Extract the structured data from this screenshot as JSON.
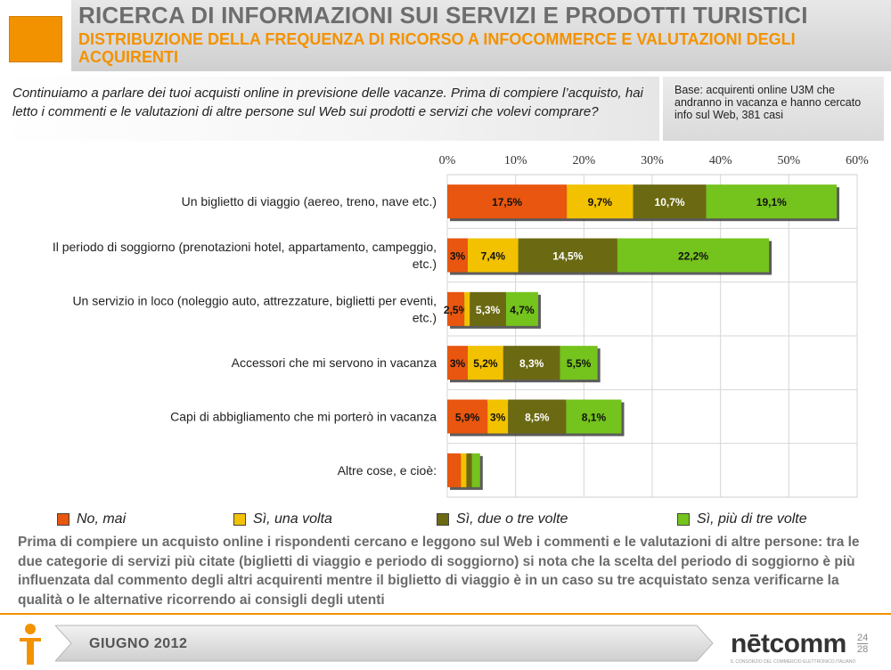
{
  "header": {
    "title": "RICERCA DI INFORMAZIONI SUI SERVIZI E PRODOTTI TURISTICI",
    "subtitle": "DISTRIBUZIONE DELLA FREQUENZA DI RICORSO A INFOCOMMERCE E VALUTAZIONI DEGLI ACQUIRENTI"
  },
  "question": "Continuiamo a parlare dei tuoi acquisti online in previsione delle vacanze. Prima di compiere l’acquisto, hai letto i commenti e le valutazioni di altre persone sul Web sui prodotti e servizi che volevi comprare?",
  "base": "Base: acquirenti online U3M che andranno in vacanza e hanno cercato info sul Web, 381 casi",
  "chart_data": {
    "type": "bar",
    "orientation": "horizontal",
    "stacked": true,
    "categories": [
      "Un biglietto di viaggio (aereo, treno, nave etc.)",
      "Il periodo di soggiorno (prenotazioni hotel, appartamento, campeggio, etc.)",
      "Un servizio in loco (noleggio auto, attrezzature, biglietti per eventi, etc.)",
      "Accessori che mi servono in vacanza",
      "Capi di abbigliamento che mi porterò in vacanza",
      "Altre cose, e cioè:"
    ],
    "category_lines": [
      [
        "Un biglietto di viaggio (aereo, treno, nave etc.)"
      ],
      [
        "Il periodo di soggiorno (prenotazioni hotel, appartamento, campeggio,",
        "etc.)"
      ],
      [
        "Un servizio in loco (noleggio auto, attrezzature, biglietti per eventi,",
        "etc.)"
      ],
      [
        "Accessori che mi servono in vacanza"
      ],
      [
        "Capi di abbigliamento che mi porterò in vacanza"
      ],
      [
        "Altre cose, e cioè:"
      ]
    ],
    "series": [
      {
        "name": "No, mai",
        "color": "#e8560f",
        "values": [
          17.5,
          3,
          2.5,
          3,
          5.9,
          2
        ]
      },
      {
        "name": "Sì, una volta",
        "color": "#f2c100",
        "values": [
          9.7,
          7.4,
          0.8,
          5.2,
          3,
          0.8
        ]
      },
      {
        "name": "Sì, due o tre volte",
        "color": "#6b6a12",
        "values": [
          10.7,
          14.5,
          5.3,
          8.3,
          8.5,
          0.8
        ]
      },
      {
        "name": "Sì, più di tre volte",
        "color": "#75c31d",
        "values": [
          19.1,
          22.2,
          4.7,
          5.5,
          8.1,
          1.2
        ]
      }
    ],
    "data_labels": [
      [
        "17,5%",
        "9,7%",
        "10,7%",
        "19,1%"
      ],
      [
        "3%",
        "7,4%",
        "14,5%",
        "22,2%"
      ],
      [
        "2,5%",
        "",
        "5,3%",
        "4,7%"
      ],
      [
        "3%",
        "5,2%",
        "8,3%",
        "5,5%"
      ],
      [
        "5,9%",
        "3%",
        "8,5%",
        "8,1%"
      ],
      [
        "",
        "",
        "",
        ""
      ]
    ],
    "x_ticks": [
      "0%",
      "10%",
      "20%",
      "30%",
      "40%",
      "50%",
      "60%"
    ],
    "xlim": [
      0,
      60
    ],
    "legend_position": "bottom",
    "grid": true
  },
  "footnote": "Prima di compiere un acquisto online i rispondenti cercano e leggono sul Web i commenti e le valutazioni di altre persone: tra le due categorie di servizi più citate (biglietti di viaggio e periodo di soggiorno) si nota che la scelta del periodo di soggiorno è più influenzata dal commento degli altri acquirenti mentre il biglietto di viaggio è in un caso su tre acquistato senza verificarne la qualità o le alternative ricorrendo ai consigli degli utenti",
  "footer": {
    "date": "GIUGNO 2012",
    "logo": "nētcomm",
    "logo_tagline": "IL CONSORZIO DEL COMMERCIO ELETTRONICO ITALIANO",
    "page_current": "24",
    "page_total": "28"
  },
  "colors": {
    "accent": "#f39200",
    "header_text": "#6d6d6d"
  }
}
